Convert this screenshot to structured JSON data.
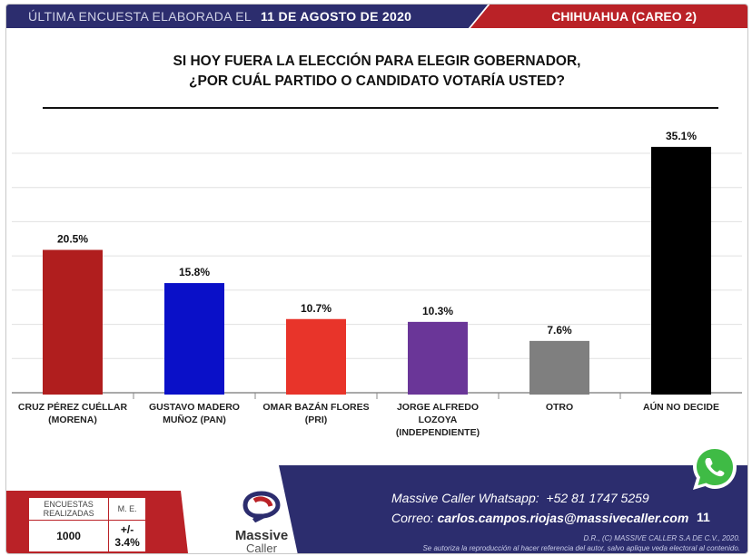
{
  "header": {
    "left_prefix": "ÚLTIMA ENCUESTA ELABORADA EL",
    "date": "11 DE AGOSTO DE 2020",
    "right": "CHIHUAHUA (CAREO 2)"
  },
  "question": {
    "line1": "SI HOY FUERA LA ELECCIÓN PARA ELEGIR GOBERNADOR,",
    "line2": "¿POR CUÁL PARTIDO O CANDIDATO VOTARÍA USTED?"
  },
  "chart_data": {
    "type": "bar",
    "categories": [
      [
        "CRUZ PÉREZ CUÉLLAR",
        "(MORENA)"
      ],
      [
        "GUSTAVO MADERO",
        "MUÑOZ (PAN)"
      ],
      [
        "OMAR BAZÁN FLORES",
        "(PRI)"
      ],
      [
        "JORGE ALFREDO LOZOYA",
        "(INDEPENDIENTE)"
      ],
      [
        "OTRO"
      ],
      [
        "AÚN NO DECIDE"
      ]
    ],
    "values": [
      20.5,
      15.8,
      10.7,
      10.3,
      7.6,
      35.1
    ],
    "value_labels": [
      "20.5%",
      "15.8%",
      "10.7%",
      "10.3%",
      "7.6%",
      "35.1%"
    ],
    "colors": [
      "#b01e1e",
      "#0a10c8",
      "#e8342a",
      "#6a3698",
      "#7f7f7f",
      "#000000"
    ],
    "ylim": [
      0,
      40
    ],
    "grid": true
  },
  "stats": {
    "encuestas_label": "ENCUESTAS REALIZADAS",
    "me_label": "M. E.",
    "encuestas_value": "1000",
    "me_value": "+/- 3.4%"
  },
  "logo": {
    "name": "Massive",
    "sub": "Caller"
  },
  "contact": {
    "whatsapp_label": "Massive Caller Whatsapp:",
    "whatsapp_number": "+52  81 1747 5259",
    "email_label": "Correo:",
    "email": "carlos.campos.riojas@massivecaller.com",
    "page_number": "11"
  },
  "copyright": {
    "line1": "D.R., (C) MASSIVE CALLER S.A DE C.V., 2020.",
    "line2": "Se autoriza la reproducción al hacer referencia del autor, salvo aplique veda electoral al contenido."
  },
  "icons": {
    "whatsapp": "whatsapp-icon",
    "logo": "massive-caller-logo-icon"
  }
}
